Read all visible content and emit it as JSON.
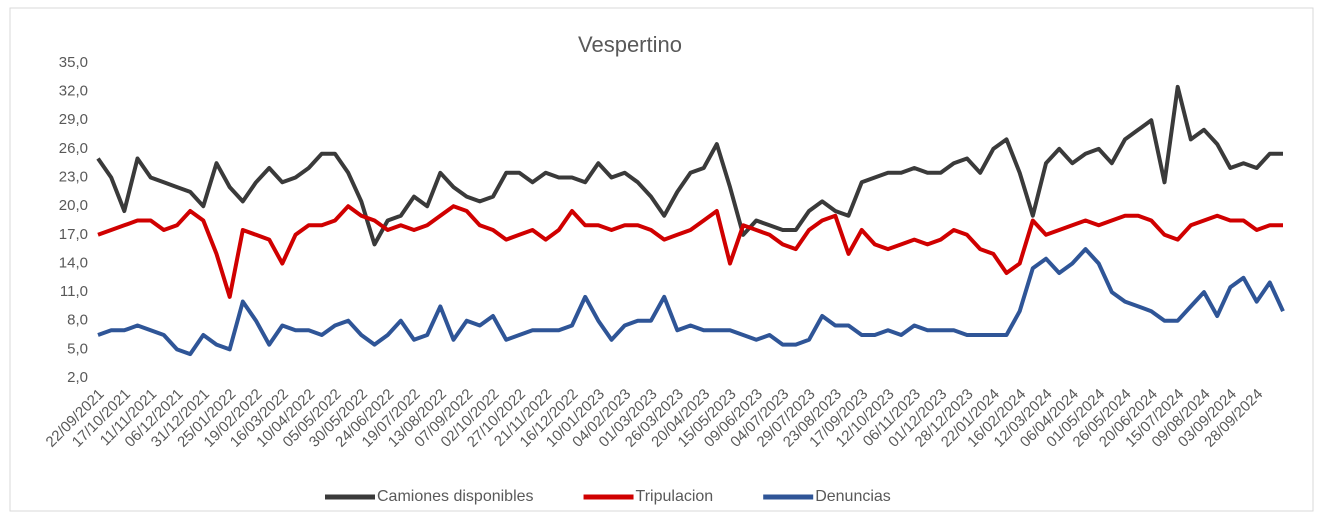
{
  "chart_data": {
    "type": "line",
    "title": "Vespertino",
    "categories": [
      "22/09/2021",
      null,
      "17/10/2021",
      null,
      "11/11/2021",
      null,
      "06/12/2021",
      null,
      "31/12/2021",
      null,
      "25/01/2022",
      null,
      "19/02/2022",
      null,
      "16/03/2022",
      null,
      "10/04/2022",
      null,
      "05/05/2022",
      null,
      "30/05/2022",
      null,
      "24/06/2022",
      null,
      "19/07/2022",
      null,
      "13/08/2022",
      null,
      "07/09/2022",
      null,
      "02/10/2022",
      null,
      "27/10/2022",
      null,
      "21/11/2022",
      null,
      "16/12/2022",
      null,
      "10/01/2023",
      null,
      "04/02/2023",
      null,
      "01/03/2023",
      null,
      "26/03/2023",
      null,
      "20/04/2023",
      null,
      "15/05/2023",
      null,
      "09/06/2023",
      null,
      "04/07/2023",
      null,
      "29/07/2023",
      null,
      "23/08/2023",
      null,
      "17/09/2023",
      null,
      "12/10/2023",
      null,
      "06/11/2023",
      null,
      "01/12/2023",
      null,
      "28/12/2023",
      null,
      "22/01/2024",
      null,
      "16/02/2024",
      null,
      "12/03/2024",
      null,
      "06/04/2024",
      null,
      "01/05/2024",
      null,
      "26/05/2024",
      null,
      "20/06/2024",
      null,
      "15/07/2024",
      null,
      "09/08/2024",
      null,
      "03/09/2024",
      null,
      "28/09/2024",
      null,
      null
    ],
    "series": [
      {
        "name": "Camiones disponibles",
        "color": "#3a3a3a",
        "values": [
          25,
          23,
          19.5,
          25,
          23,
          22.5,
          22,
          21.5,
          20,
          24.5,
          22,
          20.5,
          22.5,
          24,
          22.5,
          23,
          24,
          25.5,
          25.5,
          23.5,
          20.5,
          16,
          18.5,
          19,
          21,
          20,
          23.5,
          22,
          21,
          20.5,
          21,
          23.5,
          23.5,
          22.5,
          23.5,
          23,
          23,
          22.5,
          24.5,
          23,
          23.5,
          22.5,
          21,
          19,
          21.5,
          23.5,
          24,
          26.5,
          22,
          17,
          18.5,
          18,
          17.5,
          17.5,
          19.5,
          20.5,
          19.5,
          19,
          22.5,
          23,
          23.5,
          23.5,
          24,
          23.5,
          23.5,
          24.5,
          25,
          23.5,
          26,
          27,
          23.5,
          19,
          24.5,
          26,
          24.5,
          25.5,
          26,
          24.5,
          27,
          28,
          29,
          22.5,
          32.5,
          27,
          28,
          26.5,
          24,
          24.5,
          24,
          25.5,
          25.5
        ]
      },
      {
        "name": "Tripulacion",
        "color": "#d00000",
        "values": [
          17,
          17.5,
          18,
          18.5,
          18.5,
          17.5,
          18,
          19.5,
          18.5,
          15,
          10.5,
          17.5,
          17,
          16.5,
          14,
          17,
          18,
          18,
          18.5,
          20,
          19,
          18.5,
          17.5,
          18,
          17.5,
          18,
          19,
          20,
          19.5,
          18,
          17.5,
          16.5,
          17,
          17.5,
          16.5,
          17.5,
          19.5,
          18,
          18,
          17.5,
          18,
          18,
          17.5,
          16.5,
          17,
          17.5,
          18.5,
          19.5,
          14,
          18,
          17.5,
          17,
          16,
          15.5,
          17.5,
          18.5,
          19,
          15,
          17.5,
          16,
          15.5,
          16,
          16.5,
          16,
          16.5,
          17.5,
          17,
          15.5,
          15,
          13,
          14,
          18.5,
          17,
          17.5,
          18,
          18.5,
          18,
          18.5,
          19,
          19,
          18.5,
          17,
          16.5,
          18,
          18.5,
          19,
          18.5,
          18.5,
          17.5,
          18,
          18
        ]
      },
      {
        "name": "Denuncias",
        "color": "#2f5597",
        "values": [
          6.5,
          7,
          7,
          7.5,
          7,
          6.5,
          5,
          4.5,
          6.5,
          5.5,
          5,
          10,
          8,
          5.5,
          7.5,
          7,
          7,
          6.5,
          7.5,
          8,
          6.5,
          5.5,
          6.5,
          8,
          6,
          6.5,
          9.5,
          6,
          8,
          7.5,
          8.5,
          6,
          6.5,
          7,
          7,
          7,
          7.5,
          10.5,
          8,
          6,
          7.5,
          8,
          8,
          10.5,
          7,
          7.5,
          7,
          7,
          7,
          6.5,
          6,
          6.5,
          5.5,
          5.5,
          6,
          8.5,
          7.5,
          7.5,
          6.5,
          6.5,
          7,
          6.5,
          7.5,
          7,
          7,
          7,
          6.5,
          6.5,
          6.5,
          6.5,
          9,
          13.5,
          14.5,
          13,
          14,
          15.5,
          14,
          11,
          10,
          9.5,
          9,
          8,
          8,
          9.5,
          11,
          8.5,
          11.5,
          12.5,
          10,
          12,
          9
        ]
      }
    ],
    "ylim": [
      2,
      35
    ],
    "yticks": [
      {
        "value": 2,
        "label": "2,0"
      },
      {
        "value": 5,
        "label": "5,0"
      },
      {
        "value": 8,
        "label": "8,0"
      },
      {
        "value": 11,
        "label": "11,0"
      },
      {
        "value": 14,
        "label": "14,0"
      },
      {
        "value": 17,
        "label": "17,0"
      },
      {
        "value": 20,
        "label": "20,0"
      },
      {
        "value": 23,
        "label": "23,0"
      },
      {
        "value": 26,
        "label": "26,0"
      },
      {
        "value": 29,
        "label": "29,0"
      },
      {
        "value": 32,
        "label": "32,0"
      },
      {
        "value": 35,
        "label": "35,0"
      }
    ],
    "grid": false,
    "legend": "bottom"
  }
}
